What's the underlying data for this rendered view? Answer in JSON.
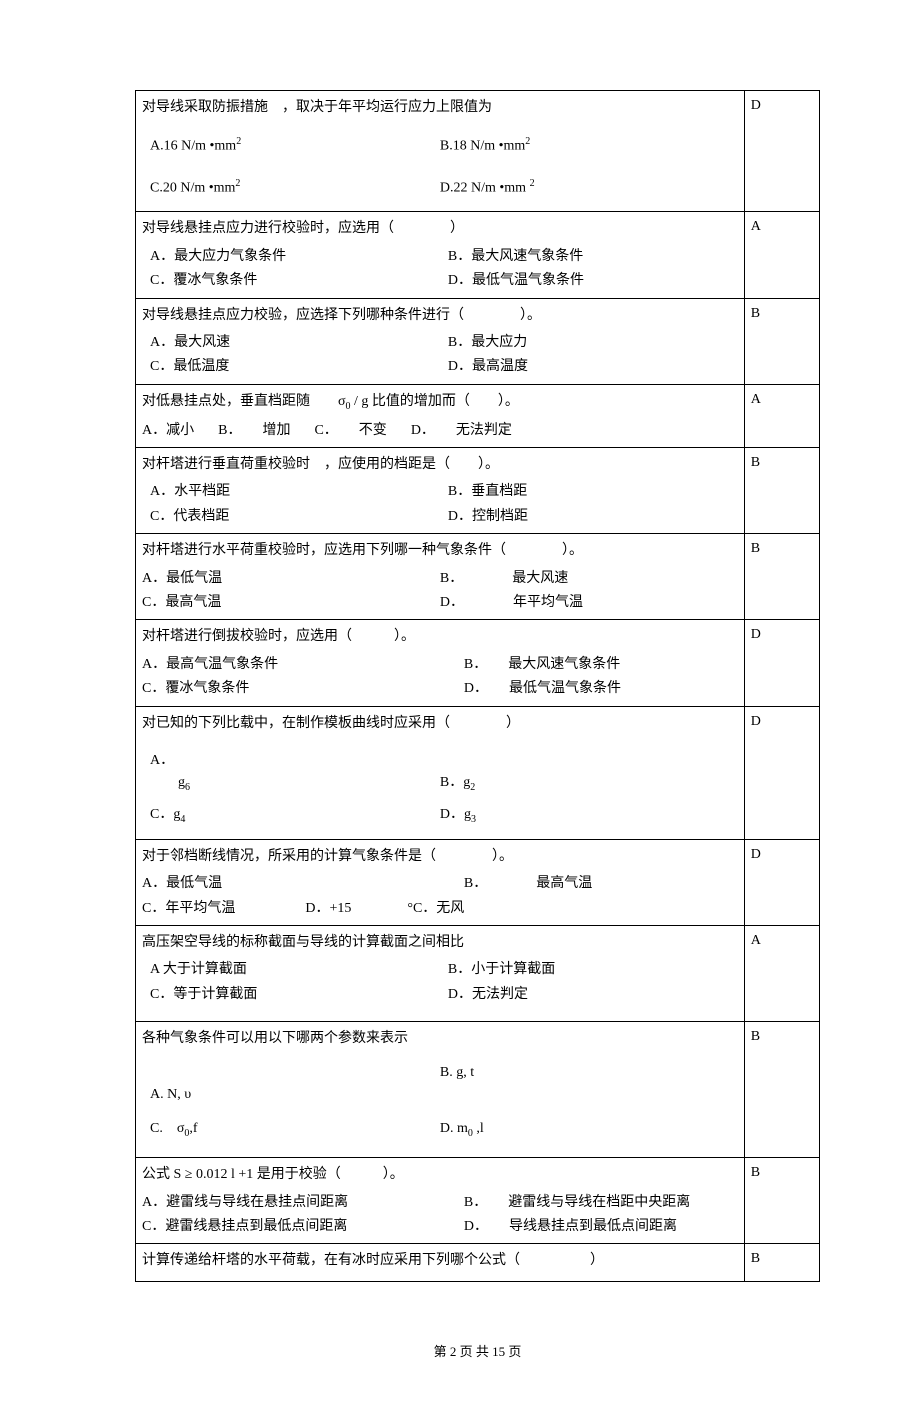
{
  "footer": "第 2 页 共 15 页",
  "rows": [
    {
      "answer": "D",
      "question": "对导线采取防振措施　，取决于年平均运行应力上限值为",
      "opts": [
        {
          "k": "A",
          "v": ".16 N/m •mm",
          "sup": "2"
        },
        {
          "k": "B",
          "v": ".18 N/m •mm",
          "sup": "2"
        },
        {
          "k": "C",
          "v": ".20 N/m •mm",
          "sup": "2"
        },
        {
          "k": "D",
          "v": ".22 N/m •mm",
          "sup": "2",
          "ssp": " "
        }
      ],
      "layout": "formula-spaced"
    },
    {
      "answer": "A",
      "question": "对导线悬挂点应力进行校验时，应选用（　　　　）",
      "opts": [
        {
          "k": "A",
          "v": "．最大应力气象条件"
        },
        {
          "k": "B",
          "v": "．最大风速气象条件"
        },
        {
          "k": "C",
          "v": "．覆冰气象条件"
        },
        {
          "k": "D",
          "v": "．最低气温气象条件"
        }
      ],
      "layout": "two-col-indent"
    },
    {
      "answer": "B",
      "question": "对导线悬挂点应力校验，应选择下列哪种条件进行（　　　　）。",
      "opts": [
        {
          "k": "A",
          "v": "．最大风速"
        },
        {
          "k": "B",
          "v": "．最大应力"
        },
        {
          "k": "C",
          "v": "．最低温度"
        },
        {
          "k": "D",
          "v": "．最高温度"
        }
      ],
      "layout": "two-col-indent"
    },
    {
      "answer": "A",
      "question_html": "对低悬挂点处，垂直档距随　　σ<sub>0</sub> / g 比值的增加而（　　）。",
      "opts": [
        {
          "k": "A",
          "v": "．减小"
        },
        {
          "k": "B",
          "v": "．　　增加"
        },
        {
          "k": "C",
          "v": "．　　不变"
        },
        {
          "k": "D",
          "v": "．　　无法判定"
        }
      ],
      "layout": "one-line"
    },
    {
      "answer": "B",
      "question": "对杆塔进行垂直荷重校验时　，应使用的档距是（　　）。",
      "opts": [
        {
          "k": "A",
          "v": "．水平档距"
        },
        {
          "k": "B",
          "v": "．垂直档距"
        },
        {
          "k": "C",
          "v": "．代表档距"
        },
        {
          "k": "D",
          "v": "．控制档距"
        }
      ],
      "layout": "two-col-indent"
    },
    {
      "answer": "B",
      "question": "对杆塔进行水平荷重校验时，应选用下列哪一种气象条件（　　　　）。",
      "opts": [
        {
          "k": "A",
          "v": "．最低气温"
        },
        {
          "k": "B",
          "v": "．　　　　最大风速"
        },
        {
          "k": "C",
          "v": "．最高气温"
        },
        {
          "k": "D",
          "v": "．　　　　年平均气温"
        }
      ],
      "layout": "two-col-noindent"
    },
    {
      "answer": "D",
      "question": "对杆塔进行倒拔校验时，应选用（　　　）。",
      "opts": [
        {
          "k": "A",
          "v": "．最高气温气象条件"
        },
        {
          "k": "B",
          "v": "．　　最大风速气象条件"
        },
        {
          "k": "C",
          "v": "．覆冰气象条件"
        },
        {
          "k": "D",
          "v": "．　　最低气温气象条件"
        }
      ],
      "layout": "two-col-noindent-b"
    },
    {
      "answer": "D",
      "question": "对已知的下列比载中，在制作模板曲线时应采用（　　　　）",
      "opts": [
        {
          "k": "A",
          "v": "．",
          "f": "g",
          "sub": "6"
        },
        {
          "k": "B",
          "v": "．",
          "f": "g",
          "sub": "2"
        },
        {
          "k": "C",
          "v": "．",
          "f": "g",
          "sub": "4"
        },
        {
          "k": "D",
          "v": "．",
          "f": "g",
          "sub": "3"
        }
      ],
      "layout": "g-layout"
    },
    {
      "answer": "D",
      "question": "对于邻档断线情况，所采用的计算气象条件是（　　　　）。",
      "opts": [
        {
          "k": "A",
          "v": "．最低气温"
        },
        {
          "k": "B",
          "v": "．　　　　最高气温"
        },
        {
          "k": "C",
          "v": "．年平均气温"
        },
        {
          "k": "D",
          "v": "．+15　　　　°C．无风"
        }
      ],
      "layout": "two-col-noindent-d"
    },
    {
      "answer": "A",
      "question": "高压架空导线的标称截面与导线的计算截面之间相比",
      "opts": [
        {
          "k": "A",
          "v": " 大于计算截面"
        },
        {
          "k": "B",
          "v": "．小于计算截面"
        },
        {
          "k": "C",
          "v": "．等于计算截面"
        },
        {
          "k": "D",
          "v": "．无法判定"
        }
      ],
      "layout": "two-col-indent-pad"
    },
    {
      "answer": "B",
      "question": "各种气象条件可以用以下哪两个参数来表示",
      "opts": [
        {
          "k": "A",
          "v": ". N, υ"
        },
        {
          "k": "B",
          "v": ". g, t"
        },
        {
          "k": "C",
          "v": ".　σ",
          "sub": "0",
          "tail": ",f"
        },
        {
          "k": "D",
          "v": ". m",
          "sub": "0",
          "tail": " ,l"
        }
      ],
      "layout": "param-layout"
    },
    {
      "answer": "B",
      "question_html": "公式 S ≥ 0.012 l +1 是用于校验（　　　）。",
      "opts": [
        {
          "k": "A",
          "v": "．避雷线与导线在悬挂点间距离"
        },
        {
          "k": "B",
          "v": "．　　避雷线与导线在档距中央距离"
        },
        {
          "k": "C",
          "v": "．避雷线悬挂点到最低点间距离"
        },
        {
          "k": "D",
          "v": "．　　导线悬挂点到最低点间距离"
        }
      ],
      "layout": "two-col-noindent-b"
    },
    {
      "answer": "B",
      "question": "计算传递给杆塔的水平荷载，在有冰时应采用下列哪个公式（　　　　　）",
      "layout": "qonly"
    }
  ]
}
